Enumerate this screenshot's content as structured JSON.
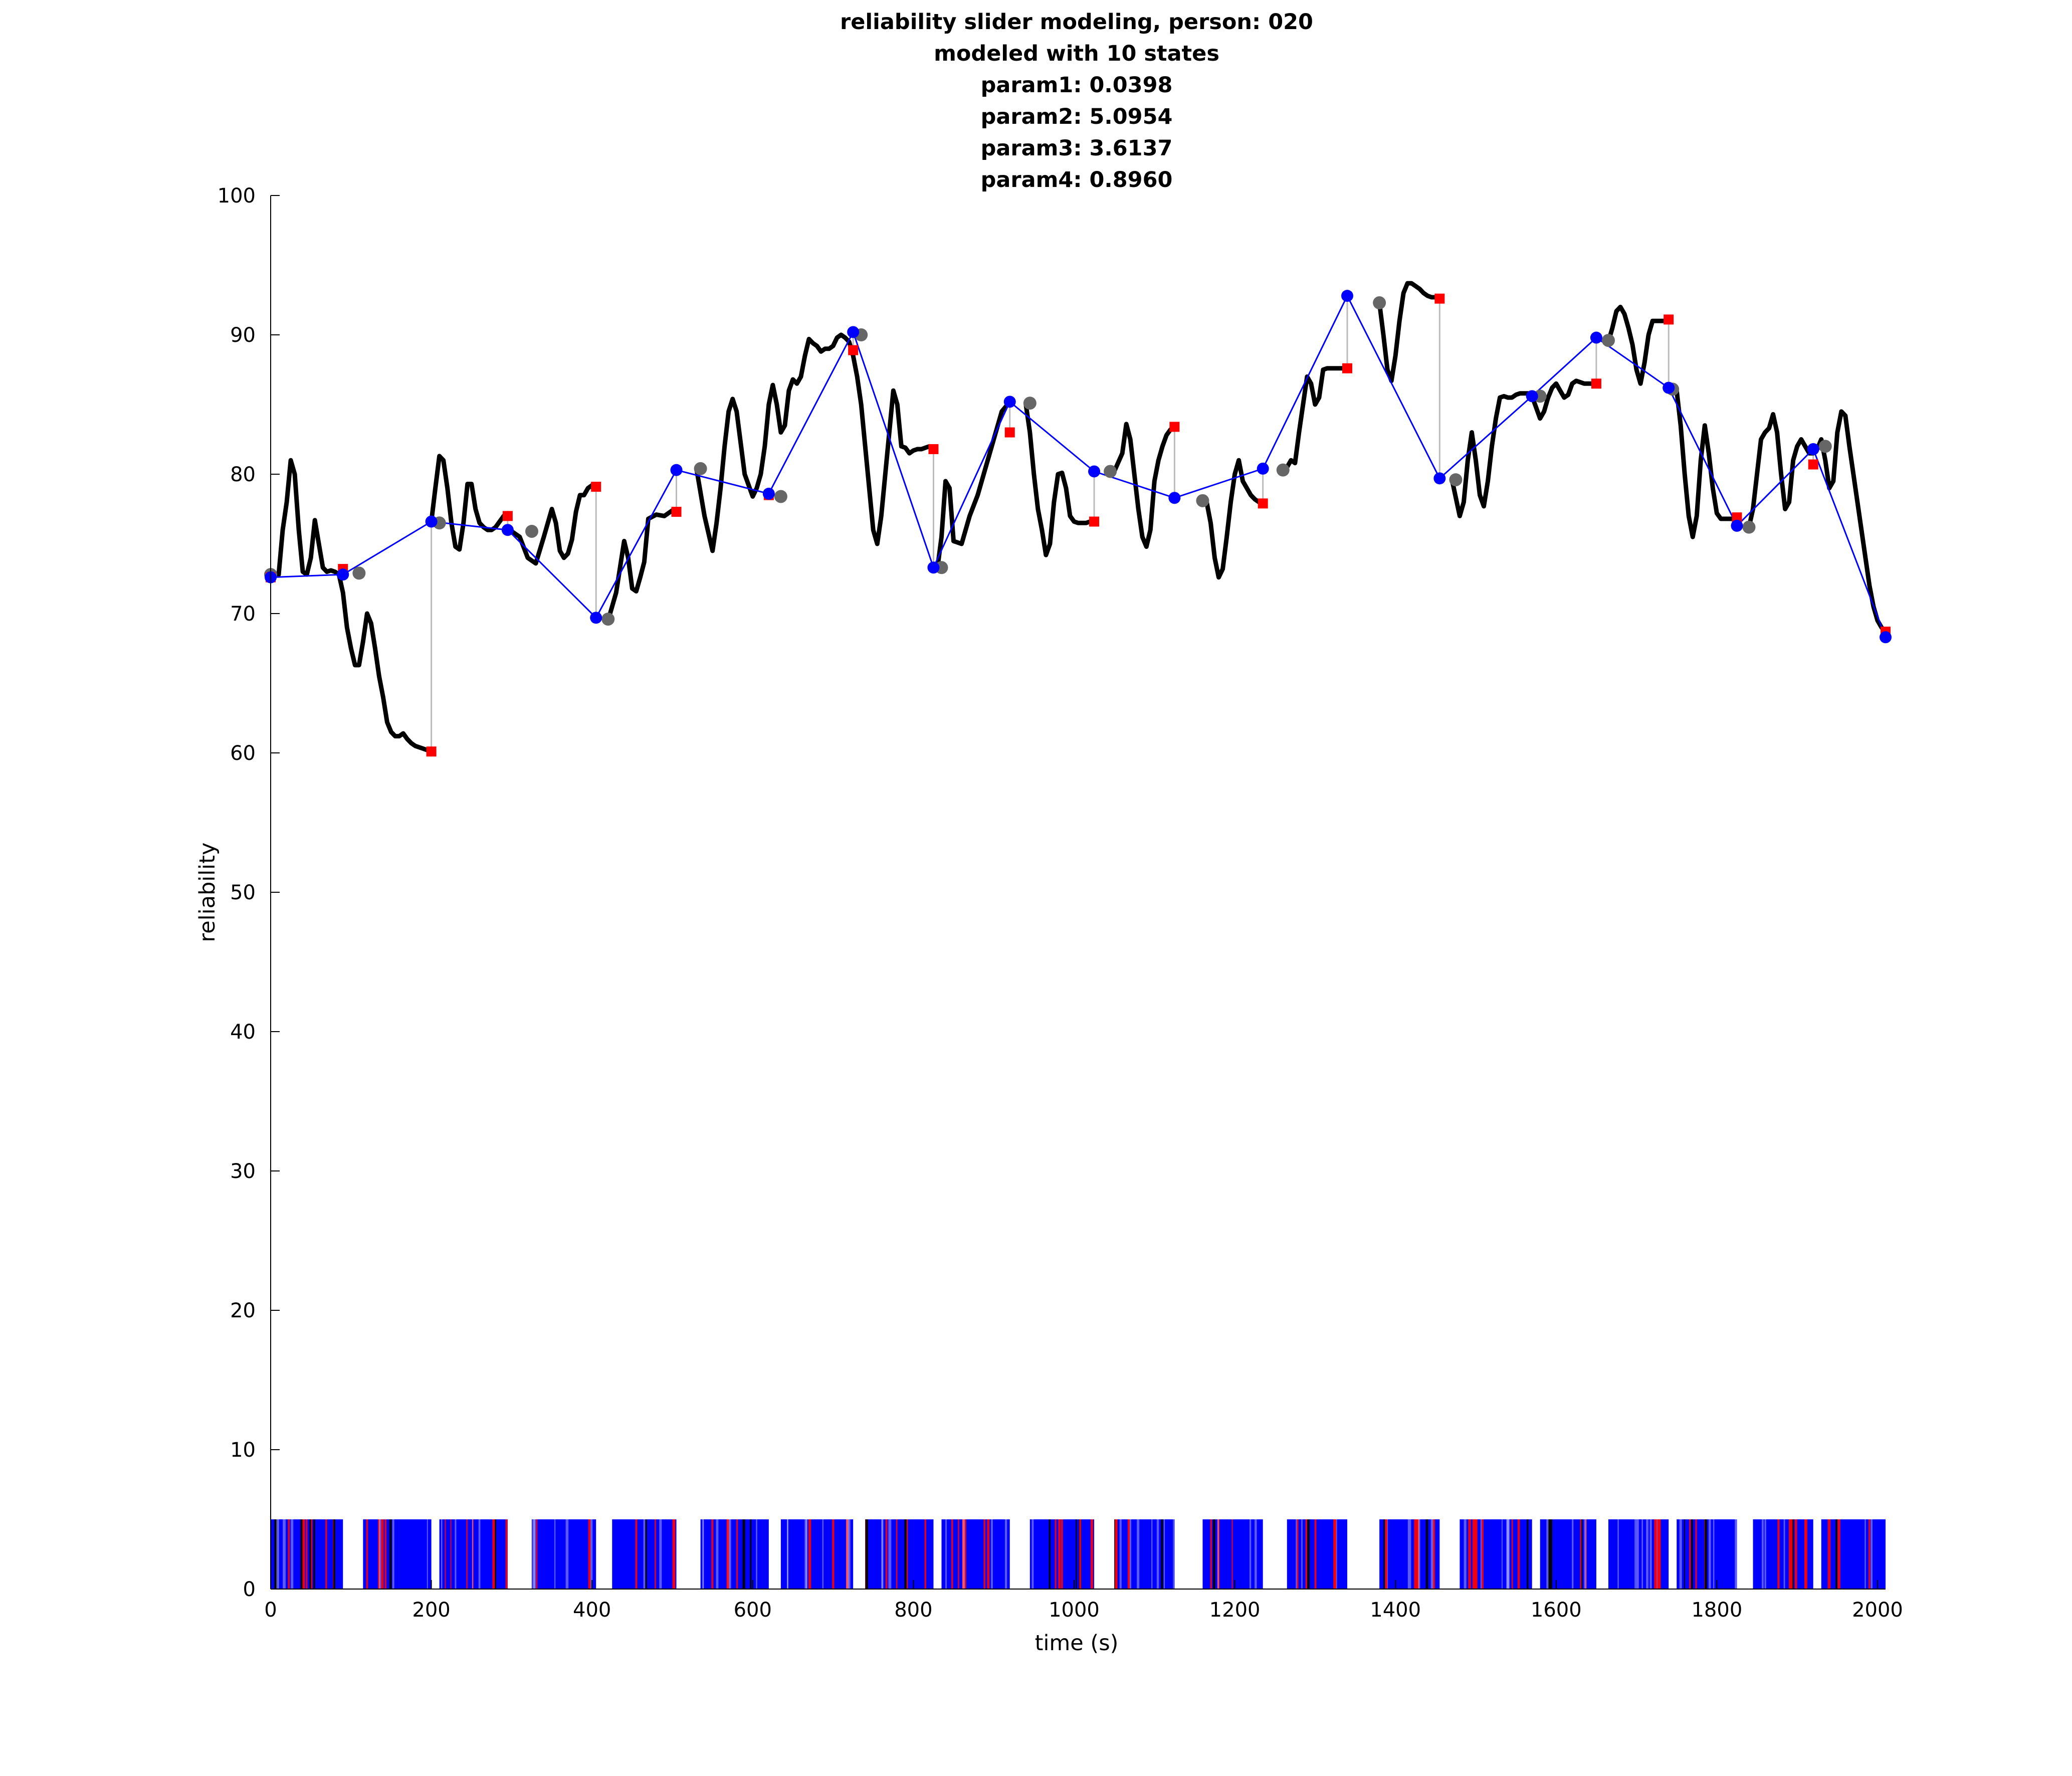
{
  "chart_data": {
    "type": "line",
    "title_lines": [
      "reliability slider modeling, person: 020",
      "modeled with 10 states",
      "param1: 0.0398",
      "param2: 5.0954",
      "param3: 3.6137",
      "param4: 0.8960"
    ],
    "xlabel": "time (s)",
    "ylabel": "reliability",
    "xlim": [
      0,
      2010
    ],
    "ylim": [
      0,
      100
    ],
    "xticks": [
      0,
      200,
      400,
      600,
      800,
      1000,
      1200,
      1400,
      1600,
      1800,
      2000
    ],
    "yticks": [
      0,
      10,
      20,
      30,
      40,
      50,
      60,
      70,
      80,
      90,
      100
    ],
    "grid": false,
    "colors": {
      "slider": "#000000",
      "model": "#0000ff",
      "observed": "#ff0000",
      "gray_points": "#666666",
      "residual": "#bbbbbb",
      "event_bar_main": "#0000ff",
      "event_bar_alt1": "#ff0000",
      "event_bar_alt2": "#000000"
    },
    "event_bar_height": 5,
    "slider_segments": [
      {
        "x": [
          0,
          10,
          15,
          20,
          25,
          30,
          35,
          40,
          45,
          50,
          55,
          60,
          65,
          70,
          75,
          80,
          85,
          90,
          95,
          100,
          105,
          110,
          115,
          120,
          125,
          130,
          135,
          140,
          145,
          150,
          155,
          160,
          165,
          170,
          175,
          180,
          185,
          190,
          195,
          200
        ],
        "y": [
          72.6,
          72.8,
          76,
          78,
          81,
          80,
          76,
          73,
          72.8,
          74,
          76.7,
          75,
          73.3,
          73,
          73.1,
          73,
          72.8,
          71.5,
          69,
          67.5,
          66.3,
          66.3,
          68,
          70,
          69.3,
          67.5,
          65.5,
          64,
          62.2,
          61.5,
          61.2,
          61.2,
          61.4,
          61,
          60.7,
          60.5,
          60.4,
          60.3,
          60.2,
          60.1
        ]
      },
      {
        "x": [
          200,
          205,
          210,
          215,
          220,
          225,
          230,
          235,
          240,
          245,
          250,
          255,
          260,
          265,
          270,
          275,
          280,
          285,
          290,
          295
        ],
        "y": [
          76.6,
          79,
          81.3,
          81,
          79,
          76.5,
          74.8,
          74.6,
          76.5,
          79.3,
          79.3,
          77.5,
          76.5,
          76.2,
          76,
          76,
          76.2,
          76.6,
          77,
          77.2
        ]
      },
      {
        "x": [
          300,
          310,
          320,
          330,
          340,
          350,
          355,
          360,
          365,
          370,
          375,
          380,
          385,
          390,
          395,
          400,
          405
        ],
        "y": [
          75.9,
          75.5,
          74,
          73.6,
          75.5,
          77.5,
          76.5,
          74.5,
          74,
          74.3,
          75.3,
          77.3,
          78.5,
          78.5,
          79,
          79.2,
          79.2
        ]
      },
      {
        "x": [
          420,
          430,
          440,
          445,
          450,
          455,
          460,
          465,
          470,
          480,
          490,
          495,
          500,
          505
        ],
        "y": [
          69.5,
          71.5,
          75.2,
          74,
          71.8,
          71.6,
          72.6,
          73.7,
          76.8,
          77.1,
          77,
          77.2,
          77.4,
          77.5
        ]
      },
      {
        "x": [
          530,
          540,
          550,
          555,
          560,
          565,
          570,
          575,
          580,
          590,
          600,
          605,
          610,
          615,
          620,
          625,
          630,
          635,
          640,
          645,
          650,
          655,
          660,
          665,
          670,
          675,
          680,
          685,
          690,
          695,
          700,
          705,
          710,
          715,
          720,
          725,
          730,
          735,
          740,
          745,
          750,
          755,
          760,
          765,
          770,
          775,
          780,
          785,
          790,
          795,
          800,
          805,
          810,
          815,
          820
        ],
        "y": [
          80.4,
          77,
          74.5,
          76.5,
          79,
          82,
          84.5,
          85.4,
          84.5,
          80,
          78.4,
          79,
          80,
          82,
          85,
          86.4,
          85,
          83,
          83.5,
          86,
          86.8,
          86.5,
          87,
          88.5,
          89.7,
          89.4,
          89.2,
          88.8,
          89,
          89,
          89.2,
          89.8,
          90,
          89.8,
          89.5,
          88.5,
          87,
          85,
          82,
          79,
          76,
          75,
          77,
          80,
          83,
          86,
          85,
          82,
          81.9,
          81.5,
          81.7,
          81.8,
          81.8,
          81.9,
          82
        ]
      },
      {
        "x": [
          830,
          835,
          840,
          845,
          850,
          860,
          870,
          880,
          890,
          900,
          910,
          920
        ],
        "y": [
          73.3,
          75.5,
          79.5,
          79,
          75.2,
          75,
          77,
          78.5,
          80.5,
          82.5,
          84.5,
          85.2
        ]
      },
      {
        "x": [
          940,
          945,
          950,
          955,
          960,
          965,
          970,
          975,
          980,
          985,
          990,
          995,
          1000,
          1005,
          1010,
          1015,
          1020,
          1025
        ],
        "y": [
          85,
          83,
          80,
          77.5,
          76,
          74.2,
          75,
          78,
          80,
          80.1,
          79,
          77,
          76.6,
          76.5,
          76.5,
          76.5,
          76.6,
          76.6
        ]
      },
      {
        "x": [
          1050,
          1060,
          1065,
          1070,
          1075,
          1080,
          1085,
          1090,
          1095,
          1100,
          1105,
          1110,
          1115,
          1120,
          1125
        ],
        "y": [
          80.2,
          81.5,
          83.6,
          82.5,
          80,
          77.5,
          75.5,
          74.8,
          76,
          79.5,
          81,
          82,
          82.8,
          83.2,
          83.4
        ]
      },
      {
        "x": [
          1160,
          1165,
          1170,
          1175,
          1180,
          1185,
          1190,
          1195,
          1200,
          1205,
          1210,
          1215,
          1220,
          1225,
          1230,
          1235
        ],
        "y": [
          78.2,
          78,
          76.5,
          74,
          72.6,
          73.2,
          75.5,
          78,
          80,
          81,
          79.5,
          79,
          78.5,
          78.2,
          78,
          78
        ]
      },
      {
        "x": [
          1260,
          1265,
          1270,
          1275,
          1280,
          1285,
          1290,
          1295,
          1300,
          1305,
          1310,
          1315,
          1320,
          1325,
          1330,
          1335,
          1340
        ],
        "y": [
          80.3,
          80.5,
          81,
          80.8,
          83,
          85,
          87,
          86.5,
          85,
          85.5,
          87.5,
          87.6,
          87.6,
          87.6,
          87.6,
          87.6,
          87.6
        ]
      },
      {
        "x": [
          1380,
          1385,
          1390,
          1395,
          1400,
          1405,
          1410,
          1415,
          1420,
          1425,
          1430,
          1435,
          1440,
          1445,
          1450,
          1455
        ],
        "y": [
          92.3,
          90,
          87.5,
          86.7,
          88.5,
          91,
          93,
          93.7,
          93.7,
          93.5,
          93.3,
          93,
          92.8,
          92.7,
          92.7,
          92.6
        ]
      },
      {
        "x": [
          1470,
          1480,
          1485,
          1490,
          1495,
          1500,
          1505,
          1510,
          1515,
          1520,
          1525,
          1530,
          1535,
          1540,
          1545,
          1550,
          1555,
          1560,
          1565,
          1570,
          1580,
          1585,
          1590,
          1595,
          1600,
          1605,
          1610,
          1615,
          1620,
          1625,
          1630,
          1635,
          1640,
          1645,
          1650
        ],
        "y": [
          79.7,
          77,
          78,
          81,
          83,
          81,
          78.5,
          77.7,
          79.5,
          82,
          84,
          85.5,
          85.6,
          85.5,
          85.5,
          85.7,
          85.8,
          85.8,
          85.8,
          85.6,
          84,
          84.5,
          85.5,
          86.2,
          86.5,
          86,
          85.5,
          85.7,
          86.5,
          86.7,
          86.6,
          86.5,
          86.5,
          86.5,
          86.5
        ]
      },
      {
        "x": [
          1665,
          1670,
          1675,
          1680,
          1685,
          1690,
          1695,
          1700,
          1705,
          1710,
          1715,
          1720,
          1725,
          1730,
          1735,
          1740
        ],
        "y": [
          89.5,
          90.5,
          91.7,
          92,
          91.5,
          90.5,
          89.3,
          87.5,
          86.5,
          88,
          90,
          91,
          91,
          91,
          91,
          91
        ]
      },
      {
        "x": [
          1745,
          1750,
          1755,
          1760,
          1765,
          1770,
          1775,
          1780,
          1785,
          1790,
          1795,
          1800,
          1805,
          1810,
          1815,
          1820,
          1825
        ],
        "y": [
          86,
          86,
          83.5,
          80,
          77,
          75.5,
          77,
          81,
          83.5,
          81.5,
          79,
          77.2,
          76.8,
          76.8,
          76.8,
          76.8,
          76.8
        ]
      },
      {
        "x": [
          1840,
          1845,
          1850,
          1855,
          1860,
          1865,
          1870,
          1875,
          1880,
          1885,
          1890,
          1895,
          1900,
          1905,
          1910,
          1915,
          1920,
          1925,
          1930,
          1935,
          1940,
          1945,
          1950,
          1955,
          1960,
          1965,
          1970,
          1975,
          1980,
          1985,
          1990,
          1995,
          2000,
          2005,
          2010
        ],
        "y": [
          76.2,
          77.5,
          80,
          82.5,
          83,
          83.3,
          84.3,
          83,
          80,
          77.5,
          78,
          81,
          82,
          82.5,
          82,
          81.5,
          81.5,
          81.8,
          82.5,
          81,
          79,
          79.5,
          83,
          84.5,
          84.2,
          82,
          80,
          78,
          76,
          74,
          72,
          70.5,
          69.5,
          69,
          68.7
        ]
      }
    ],
    "model_points": {
      "x": [
        0,
        90,
        200,
        295,
        405,
        505,
        620,
        725,
        825,
        920,
        1025,
        1125,
        1235,
        1340,
        1455,
        1570,
        1650,
        1740,
        1825,
        1920,
        2010
      ],
      "y": [
        72.6,
        72.8,
        76.6,
        76,
        69.7,
        80.3,
        78.6,
        90.2,
        73.3,
        85.2,
        80.2,
        78.3,
        80.4,
        92.8,
        79.7,
        85.6,
        89.8,
        86.2,
        76.3,
        81.8,
        68.3
      ]
    },
    "observed_points": {
      "x": [
        0,
        90,
        200,
        295,
        405,
        505,
        620,
        725,
        825,
        920,
        1025,
        1125,
        1235,
        1340,
        1455,
        1650,
        1740,
        1825,
        1920,
        2010
      ],
      "y": [
        72.6,
        73.2,
        60.1,
        77,
        79.1,
        77.3,
        78.5,
        88.9,
        81.8,
        83,
        76.6,
        83.4,
        77.9,
        87.6,
        92.6,
        86.5,
        91.1,
        76.9,
        80.7,
        68.7
      ]
    },
    "gray_points": {
      "x": [
        0,
        110,
        210,
        325,
        420,
        535,
        635,
        735,
        835,
        945,
        1045,
        1160,
        1260,
        1380,
        1475,
        1580,
        1665,
        1745,
        1840,
        1935
      ],
      "y": [
        72.8,
        72.9,
        76.5,
        75.9,
        69.6,
        80.4,
        78.4,
        90,
        73.3,
        85.1,
        80.2,
        78.1,
        80.3,
        92.3,
        79.6,
        85.6,
        89.6,
        86.1,
        76.2,
        82
      ]
    },
    "event_bar_segments": [
      [
        0,
        90
      ],
      [
        115,
        200
      ],
      [
        210,
        295
      ],
      [
        325,
        405
      ],
      [
        425,
        505
      ],
      [
        535,
        620
      ],
      [
        635,
        725
      ],
      [
        740,
        825
      ],
      [
        835,
        920
      ],
      [
        945,
        1025
      ],
      [
        1050,
        1125
      ],
      [
        1160,
        1235
      ],
      [
        1265,
        1340
      ],
      [
        1380,
        1455
      ],
      [
        1480,
        1570
      ],
      [
        1580,
        1650
      ],
      [
        1665,
        1740
      ],
      [
        1750,
        1825
      ],
      [
        1845,
        1920
      ],
      [
        1930,
        2010
      ]
    ]
  }
}
